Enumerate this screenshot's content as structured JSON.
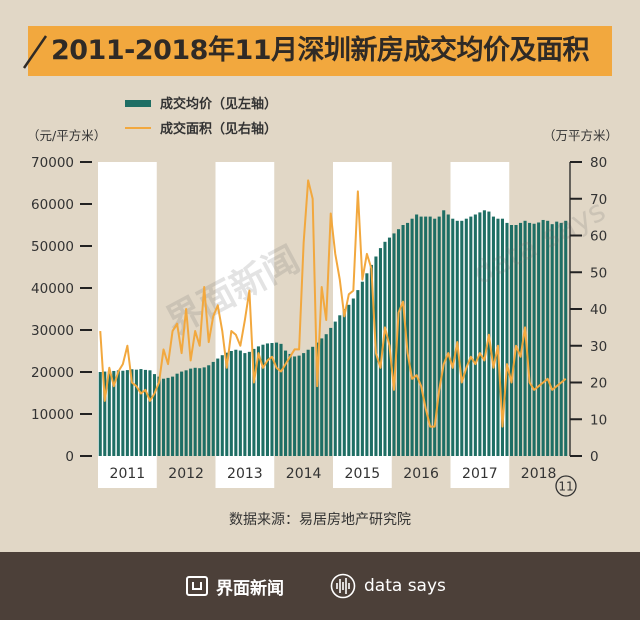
{
  "title": "2011-2018年11月深圳新房成交均价及面积",
  "source": "数据来源：易居房地产研究院",
  "watermark": "界面新闻",
  "watermark2": "data says",
  "footer": {
    "logo1": "界面新闻",
    "logo2": "data says"
  },
  "colors": {
    "background": "#e1d7c6",
    "title_band": "#f2a83e",
    "bar": "#1e6e64",
    "line": "#f2a83e",
    "footer": "#4c4039",
    "year_band": "#ffffff"
  },
  "chart_data": {
    "type": "bar+line",
    "series": [
      {
        "name": "成交均价（见左轴）",
        "axis": "left",
        "type": "bar",
        "values": [
          20000,
          20100,
          20150,
          20250,
          20400,
          20300,
          20450,
          20650,
          20550,
          20700,
          20500,
          20400,
          19500,
          18900,
          18400,
          18600,
          18900,
          19600,
          20100,
          20400,
          20800,
          21000,
          20900,
          21100,
          21600,
          22400,
          23200,
          24000,
          24600,
          25000,
          25300,
          25100,
          24500,
          24800,
          25500,
          26100,
          26500,
          26800,
          26900,
          27000,
          26700,
          25100,
          24300,
          23700,
          23900,
          24500,
          25300,
          26000,
          27000,
          28000,
          29000,
          30500,
          32000,
          33500,
          35000,
          36000,
          37500,
          39500,
          41500,
          43500,
          45500,
          47500,
          49500,
          51000,
          52000,
          53000,
          54000,
          55000,
          55500,
          56500,
          57500,
          57000,
          57000,
          57000,
          56500,
          57000,
          58500,
          57500,
          56500,
          56000,
          56000,
          56500,
          57000,
          57500,
          58000,
          58500,
          58200,
          57000,
          56500,
          56500,
          55500,
          55000,
          55000,
          55500,
          56000,
          55500,
          55300,
          55600,
          56200,
          56000,
          55200,
          55800,
          55500,
          56000
        ],
        "color": "#1e6e64"
      },
      {
        "name": "成交面积（见右轴）",
        "axis": "right",
        "type": "line",
        "values": [
          34,
          15,
          24,
          19,
          23,
          25,
          30,
          20,
          19,
          17,
          18,
          15,
          17,
          20,
          29,
          25,
          34,
          36,
          28,
          40,
          26,
          34,
          30,
          46,
          31,
          38,
          41,
          34,
          24,
          34,
          33,
          30,
          37,
          45,
          20,
          28,
          24,
          26,
          27,
          24,
          23,
          25,
          27,
          29,
          29,
          58,
          75,
          70,
          19,
          46,
          37,
          66,
          55,
          48,
          38,
          44,
          45,
          72,
          48,
          55,
          51,
          28,
          24,
          35,
          30,
          18,
          39,
          42,
          28,
          21,
          22,
          19,
          13,
          8,
          8,
          18,
          25,
          28,
          24,
          31,
          20,
          24,
          27,
          25,
          28,
          26,
          33,
          24,
          30,
          8,
          25,
          20,
          30,
          27,
          35,
          20,
          18,
          19,
          20,
          21,
          18,
          19,
          20,
          21
        ],
        "color": "#f2a83e"
      }
    ],
    "years": [
      "2011",
      "2012",
      "2013",
      "2014",
      "2015",
      "2016",
      "2017",
      "2018"
    ],
    "last_month_label": "11",
    "left_axis": {
      "label": "（元/平方米）",
      "min": 0,
      "max": 70000,
      "ticks": [
        "70000",
        "60000",
        "50000",
        "40000",
        "30000",
        "20000",
        "10000",
        "0"
      ]
    },
    "right_axis": {
      "label": "（万平方米）",
      "min": 0,
      "max": 80,
      "ticks": [
        "80",
        "70",
        "60",
        "50",
        "40",
        "30",
        "20",
        "10",
        "0"
      ]
    }
  }
}
